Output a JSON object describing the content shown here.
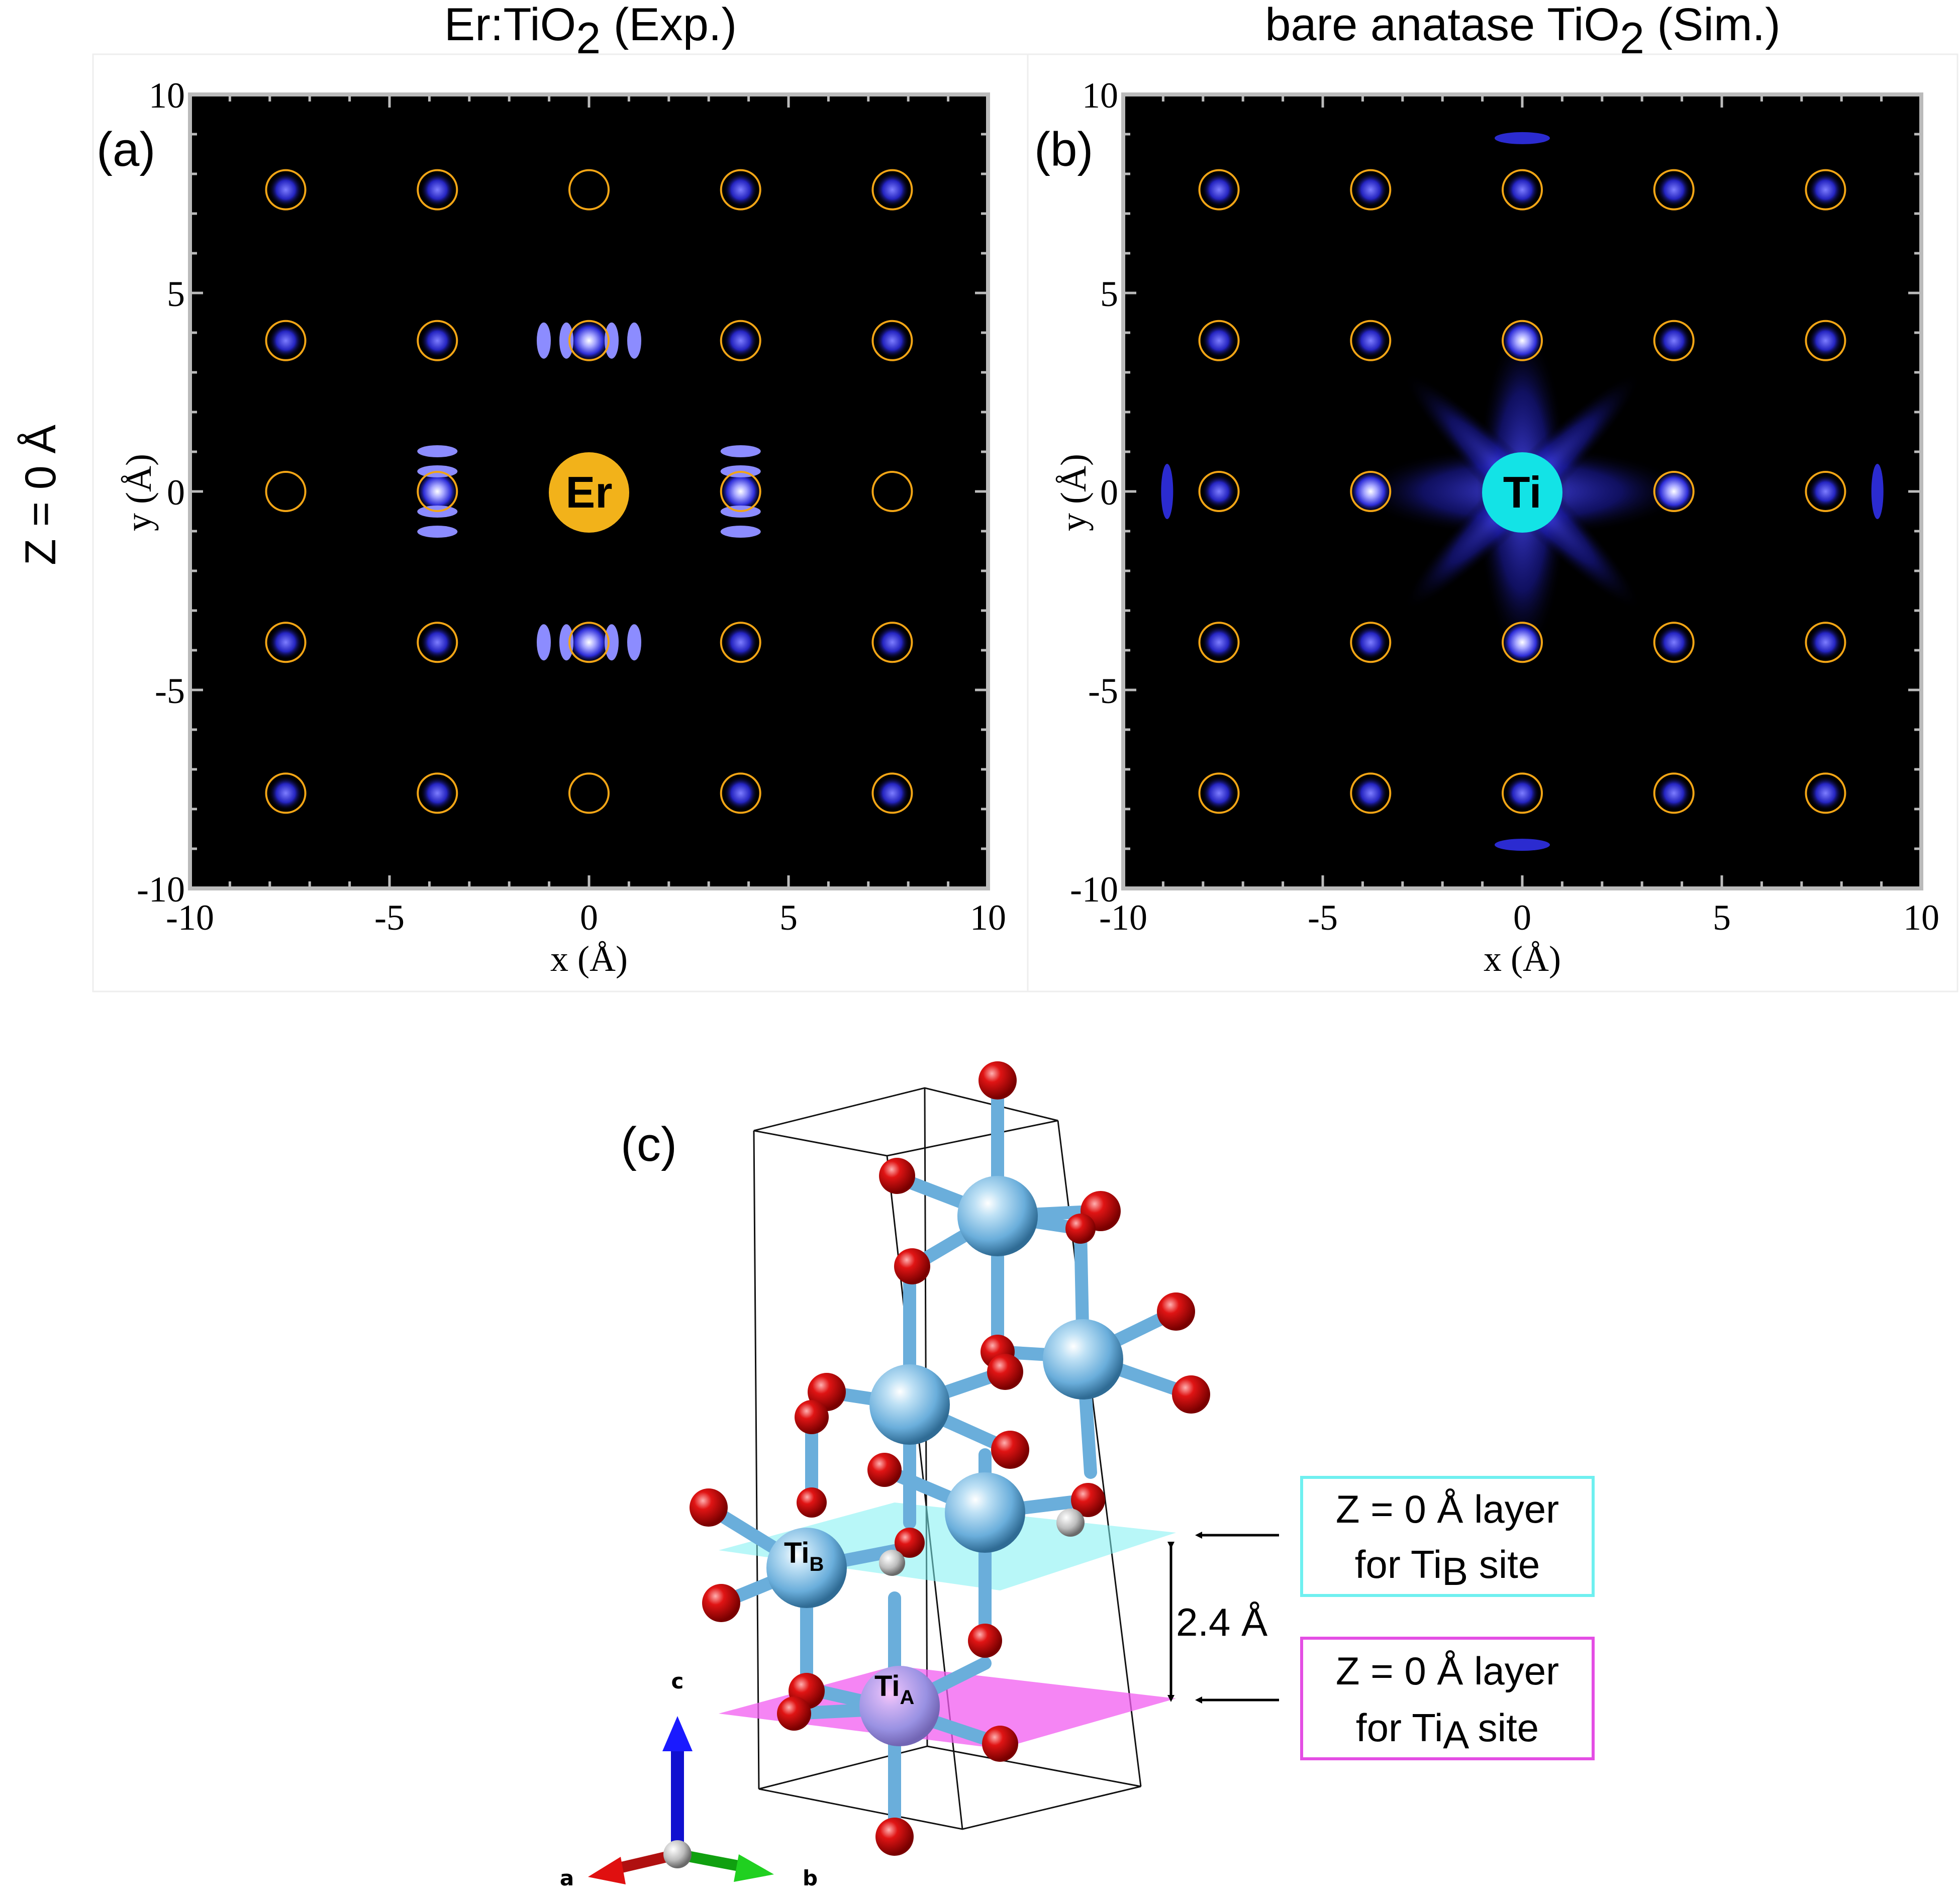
{
  "side_label": "Z = 0 Å",
  "panels": [
    {
      "id": "a",
      "title_main": "Er:TiO",
      "title_sub": "2",
      "title_tail": " (Exp.)",
      "panel_label": "(a)",
      "center_atom": "Er",
      "center_color": "#f2b21a",
      "xlabel": "x (Å)",
      "ylabel": "y (Å)",
      "xticks": [
        "-10",
        "-5",
        "0",
        "5",
        "10"
      ],
      "yticks": [
        "10",
        "5",
        "0",
        "-5",
        "-10"
      ]
    },
    {
      "id": "b",
      "title_main": "bare anatase TiO",
      "title_sub": "2",
      "title_tail": " (Sim.)",
      "panel_label": "(b)",
      "center_atom": "Ti",
      "center_color": "#13e3e6",
      "xlabel": "x (Å)",
      "ylabel": "y (Å)",
      "xticks": [
        "-10",
        "-5",
        "0",
        "5",
        "10"
      ],
      "yticks": [
        "10",
        "5",
        "0",
        "-5",
        "-10"
      ]
    }
  ],
  "chart_data": [
    {
      "type": "heatmap",
      "panel": "a",
      "xlim": [
        -10,
        10
      ],
      "ylim": [
        -10,
        10
      ],
      "xlabel": "x (Å)",
      "ylabel": "y (Å)",
      "lattice_marker_positions": [
        -7.6,
        -3.8,
        0,
        3.8,
        7.6
      ],
      "center_atom": "Er",
      "colormap": "black-blue-white"
    },
    {
      "type": "heatmap",
      "panel": "b",
      "xlim": [
        -10,
        10
      ],
      "ylim": [
        -10,
        10
      ],
      "xlabel": "x (Å)",
      "ylabel": "y (Å)",
      "lattice_marker_positions": [
        -7.6,
        -3.8,
        0,
        3.8,
        7.6
      ],
      "center_atom": "Ti",
      "colormap": "black-blue-white"
    }
  ],
  "structure": {
    "panel_label": "(c)",
    "ti_b_base": "Ti",
    "ti_b_sub": "B",
    "ti_a_base": "Ti",
    "ti_a_sub": "A",
    "distance_label": "2.4 Å",
    "axis_a": "a",
    "axis_b": "b",
    "axis_c": "c",
    "box_cyan_line1": "Z = 0 Å layer",
    "box_cyan_line2_pre": "for Ti",
    "box_cyan_line2_sub": "B",
    "box_cyan_line2_post": " site",
    "box_magenta_line1": "Z = 0 Å layer",
    "box_magenta_line2_pre": "for Ti",
    "box_magenta_line2_sub": "A",
    "box_magenta_line2_post": " site",
    "colors": {
      "ti": "#6aaedb",
      "o": "#e01414",
      "plane_cyan": "#7df0f2",
      "plane_magenta": "#f25cf0",
      "box_cyan": "#6ff0f0",
      "box_magenta": "#e44ee4"
    }
  }
}
